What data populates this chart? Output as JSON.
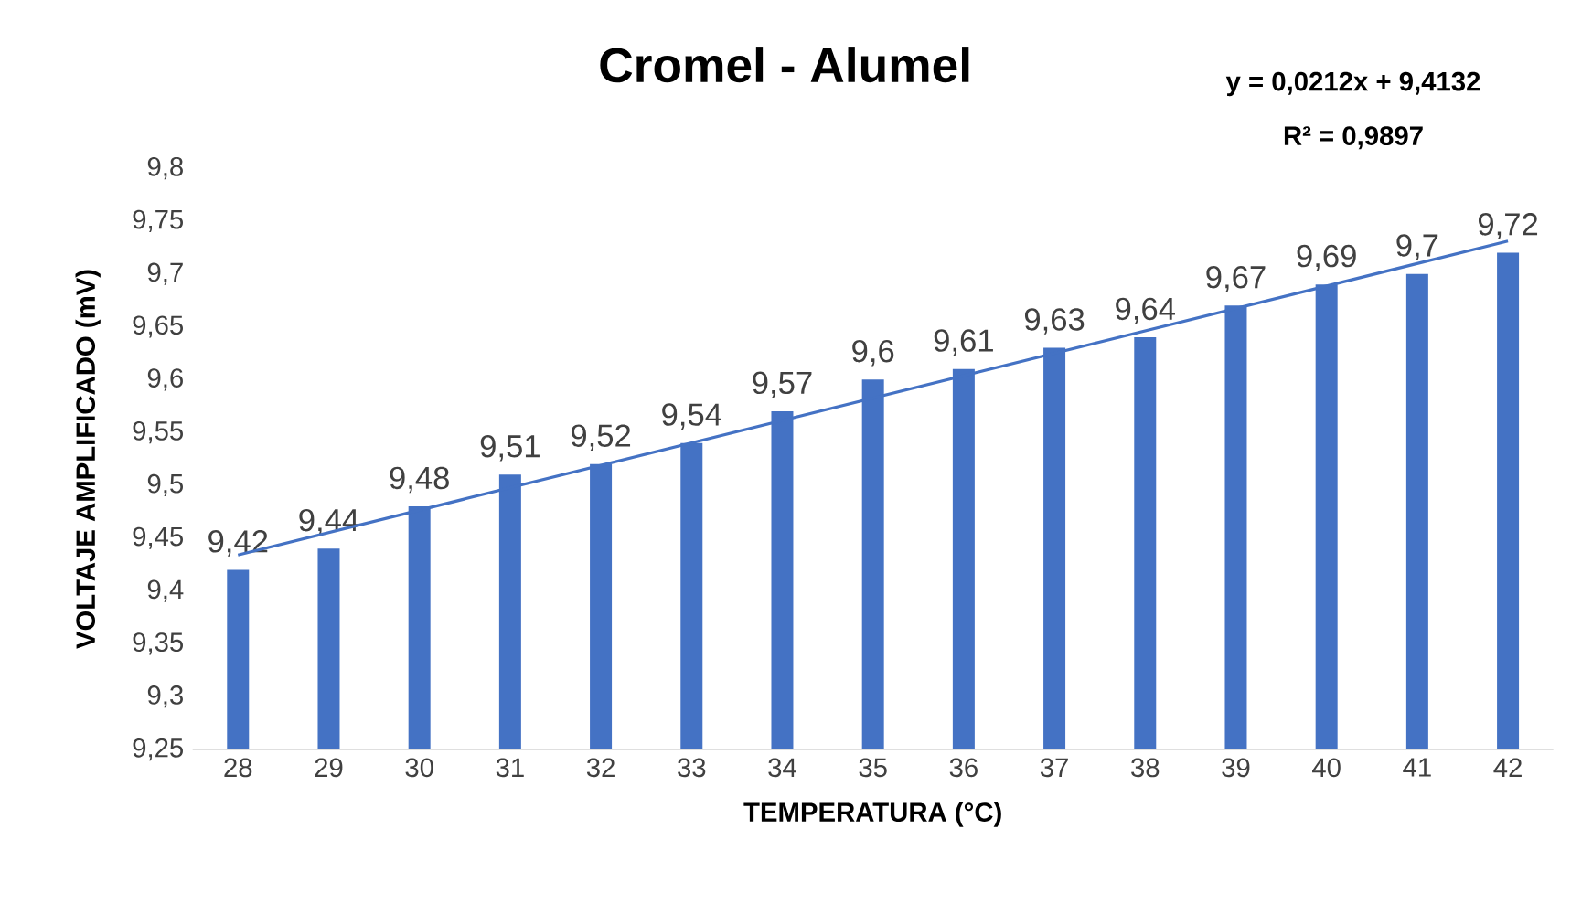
{
  "chart_data": {
    "type": "bar",
    "title": "Cromel - Alumel",
    "xlabel": "TEMPERATURA (°C)",
    "ylabel": "VOLTAJE AMPLIFICADO (mV)",
    "x": [
      28,
      29,
      30,
      31,
      32,
      33,
      34,
      35,
      36,
      37,
      38,
      39,
      40,
      41,
      42
    ],
    "xlim": [
      27.5,
      42.5
    ],
    "xticks": [
      28,
      29,
      30,
      31,
      32,
      33,
      34,
      35,
      36,
      37,
      38,
      39,
      40,
      41,
      42
    ],
    "ylim": [
      9.25,
      9.8
    ],
    "yticks": [
      {
        "value": 9.25,
        "label": "9,25"
      },
      {
        "value": 9.3,
        "label": "9,3"
      },
      {
        "value": 9.35,
        "label": "9,35"
      },
      {
        "value": 9.4,
        "label": "9,4"
      },
      {
        "value": 9.45,
        "label": "9,45"
      },
      {
        "value": 9.5,
        "label": "9,5"
      },
      {
        "value": 9.55,
        "label": "9,55"
      },
      {
        "value": 9.6,
        "label": "9,6"
      },
      {
        "value": 9.65,
        "label": "9,65"
      },
      {
        "value": 9.7,
        "label": "9,7"
      },
      {
        "value": 9.75,
        "label": "9,75"
      },
      {
        "value": 9.8,
        "label": "9,8"
      }
    ],
    "series": [
      {
        "color": "#4472c4",
        "values": [
          9.42,
          9.44,
          9.48,
          9.51,
          9.52,
          9.54,
          9.57,
          9.6,
          9.61,
          9.63,
          9.64,
          9.67,
          9.69,
          9.7,
          9.72
        ],
        "value_labels": [
          "9,42",
          "9,44",
          "9,48",
          "9,51",
          "9,52",
          "9,54",
          "9,57",
          "9,6",
          "9,61",
          "9,63",
          "9,64",
          "9,67",
          "9,69",
          "9,7",
          "9,72"
        ]
      },
      {
        "type": "line",
        "color": "#4472c4",
        "x": [
          28,
          42
        ],
        "values": [
          9.434,
          9.731
        ]
      }
    ],
    "annotations": [
      "y = 0,0212x + 9,4132",
      "R² = 0,9897"
    ]
  }
}
